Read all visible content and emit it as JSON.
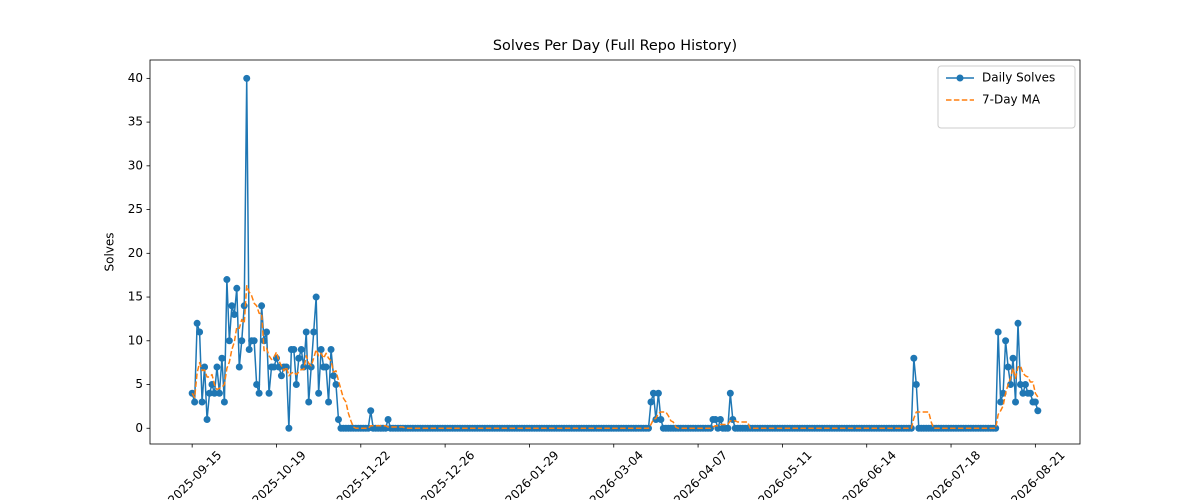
{
  "chart_data": {
    "type": "line",
    "title": "Solves Per Day (Full Repo History)",
    "y_label": "Solves",
    "legend": "upper right",
    "grid": false,
    "xlim": [
      "2025-08-29",
      "2026-09-08"
    ],
    "xticks": [
      "2025-09-15",
      "2025-10-19",
      "2025-11-22",
      "2025-12-26",
      "2026-01-29",
      "2026-03-04",
      "2026-04-07",
      "2026-05-11",
      "2026-06-14",
      "2026-07-18",
      "2026-08-21"
    ],
    "ylim": [
      -1.8,
      42.1
    ],
    "yticks": [
      0,
      5,
      10,
      15,
      20,
      25,
      30,
      35,
      40
    ],
    "x": [
      "2025-09-15",
      "2025-09-16",
      "2025-09-17",
      "2025-09-18",
      "2025-09-19",
      "2025-09-20",
      "2025-09-21",
      "2025-09-22",
      "2025-09-23",
      "2025-09-24",
      "2025-09-25",
      "2025-09-26",
      "2025-09-27",
      "2025-09-28",
      "2025-09-29",
      "2025-09-30",
      "2025-10-01",
      "2025-10-02",
      "2025-10-03",
      "2025-10-04",
      "2025-10-05",
      "2025-10-06",
      "2025-10-07",
      "2025-10-08",
      "2025-10-09",
      "2025-10-10",
      "2025-10-11",
      "2025-10-12",
      "2025-10-13",
      "2025-10-14",
      "2025-10-15",
      "2025-10-16",
      "2025-10-17",
      "2025-10-18",
      "2025-10-19",
      "2025-10-20",
      "2025-10-21",
      "2025-10-22",
      "2025-10-23",
      "2025-10-24",
      "2025-10-25",
      "2025-10-26",
      "2025-10-27",
      "2025-10-28",
      "2025-10-29",
      "2025-10-30",
      "2025-10-31",
      "2025-11-01",
      "2025-11-02",
      "2025-11-03",
      "2025-11-04",
      "2025-11-05",
      "2025-11-06",
      "2025-11-07",
      "2025-11-08",
      "2025-11-09",
      "2025-11-10",
      "2025-11-11",
      "2025-11-12",
      "2025-11-13",
      "2025-11-14",
      "2025-11-15",
      "2025-11-16",
      "2025-11-17",
      "2025-11-18",
      "2025-11-19",
      "2025-11-20",
      "2025-11-21",
      "2025-11-22",
      "2025-11-23",
      "2025-11-24",
      "2025-11-25",
      "2025-11-26",
      "2025-11-27",
      "2025-11-28",
      "2025-11-29",
      "2025-11-30",
      "2025-12-01",
      "2025-12-02",
      "2025-12-03",
      "2025-12-04",
      "2025-12-05",
      "2025-12-06",
      "2025-12-07",
      "2025-12-08",
      "2025-12-09",
      "2025-12-10",
      "2025-12-11",
      "2025-12-12",
      "2025-12-13",
      "2025-12-14",
      "2025-12-15",
      "2025-12-16",
      "2025-12-17",
      "2025-12-18",
      "2025-12-19",
      "2025-12-20",
      "2025-12-21",
      "2025-12-22",
      "2025-12-23",
      "2025-12-24",
      "2025-12-25",
      "2025-12-26",
      "2025-12-27",
      "2025-12-28",
      "2025-12-29",
      "2025-12-30",
      "2025-12-31",
      "2026-01-01",
      "2026-01-02",
      "2026-01-03",
      "2026-01-04",
      "2026-01-05",
      "2026-01-06",
      "2026-01-07",
      "2026-01-08",
      "2026-01-09",
      "2026-01-10",
      "2026-01-11",
      "2026-01-12",
      "2026-01-13",
      "2026-01-14",
      "2026-01-15",
      "2026-01-16",
      "2026-01-17",
      "2026-01-18",
      "2026-01-19",
      "2026-01-20",
      "2026-01-21",
      "2026-01-22",
      "2026-01-23",
      "2026-01-24",
      "2026-01-25",
      "2026-01-26",
      "2026-01-27",
      "2026-01-28",
      "2026-01-29",
      "2026-01-30",
      "2026-01-31",
      "2026-02-01",
      "2026-02-02",
      "2026-02-03",
      "2026-02-04",
      "2026-02-05",
      "2026-02-06",
      "2026-02-07",
      "2026-02-08",
      "2026-02-09",
      "2026-02-10",
      "2026-02-11",
      "2026-02-12",
      "2026-02-13",
      "2026-02-14",
      "2026-02-15",
      "2026-02-16",
      "2026-02-17",
      "2026-02-18",
      "2026-02-19",
      "2026-02-20",
      "2026-02-21",
      "2026-02-22",
      "2026-02-23",
      "2026-02-24",
      "2026-02-25",
      "2026-02-26",
      "2026-02-27",
      "2026-02-28",
      "2026-03-01",
      "2026-03-02",
      "2026-03-03",
      "2026-03-04",
      "2026-03-05",
      "2026-03-06",
      "2026-03-07",
      "2026-03-08",
      "2026-03-09",
      "2026-03-10",
      "2026-03-11",
      "2026-03-12",
      "2026-03-13",
      "2026-03-14",
      "2026-03-15",
      "2026-03-16",
      "2026-03-17",
      "2026-03-18",
      "2026-03-19",
      "2026-03-20",
      "2026-03-21",
      "2026-03-22",
      "2026-03-23",
      "2026-03-24",
      "2026-03-25",
      "2026-03-26",
      "2026-03-27",
      "2026-03-28",
      "2026-03-29",
      "2026-03-30",
      "2026-03-31",
      "2026-04-01",
      "2026-04-02",
      "2026-04-03",
      "2026-04-04",
      "2026-04-05",
      "2026-04-06",
      "2026-04-07",
      "2026-04-08",
      "2026-04-09",
      "2026-04-10",
      "2026-04-11",
      "2026-04-12",
      "2026-04-13",
      "2026-04-14",
      "2026-04-15",
      "2026-04-16",
      "2026-04-17",
      "2026-04-18",
      "2026-04-19",
      "2026-04-20",
      "2026-04-21",
      "2026-04-22",
      "2026-04-23",
      "2026-04-24",
      "2026-04-25",
      "2026-04-26",
      "2026-04-27",
      "2026-04-28",
      "2026-04-29",
      "2026-04-30",
      "2026-05-01",
      "2026-05-02",
      "2026-05-03",
      "2026-05-04",
      "2026-05-05",
      "2026-05-06",
      "2026-05-07",
      "2026-05-08",
      "2026-05-09",
      "2026-05-10",
      "2026-05-11",
      "2026-05-12",
      "2026-05-13",
      "2026-05-14",
      "2026-05-15",
      "2026-05-16",
      "2026-05-17",
      "2026-05-18",
      "2026-05-19",
      "2026-05-20",
      "2026-05-21",
      "2026-05-22",
      "2026-05-23",
      "2026-05-24",
      "2026-05-25",
      "2026-05-26",
      "2026-05-27",
      "2026-05-28",
      "2026-05-29",
      "2026-05-30",
      "2026-05-31",
      "2026-06-01",
      "2026-06-02",
      "2026-06-03",
      "2026-06-04",
      "2026-06-05",
      "2026-06-06",
      "2026-06-07",
      "2026-06-08",
      "2026-06-09",
      "2026-06-10",
      "2026-06-11",
      "2026-06-12",
      "2026-06-13",
      "2026-06-14",
      "2026-06-15",
      "2026-06-16",
      "2026-06-17",
      "2026-06-18",
      "2026-06-19",
      "2026-06-20",
      "2026-06-21",
      "2026-06-22",
      "2026-06-23",
      "2026-06-24",
      "2026-06-25",
      "2026-06-26",
      "2026-06-27",
      "2026-06-28",
      "2026-06-29",
      "2026-06-30",
      "2026-07-01",
      "2026-07-02",
      "2026-07-03",
      "2026-07-04",
      "2026-07-05",
      "2026-07-06",
      "2026-07-07",
      "2026-07-08",
      "2026-07-09",
      "2026-07-10",
      "2026-07-11",
      "2026-07-12",
      "2026-07-13",
      "2026-07-14",
      "2026-07-15",
      "2026-07-16",
      "2026-07-17",
      "2026-07-18",
      "2026-07-19",
      "2026-07-20",
      "2026-07-21",
      "2026-07-22",
      "2026-07-23",
      "2026-07-24",
      "2026-07-25",
      "2026-07-26",
      "2026-07-27",
      "2026-07-28",
      "2026-07-29",
      "2026-07-30",
      "2026-07-31",
      "2026-08-01",
      "2026-08-02",
      "2026-08-03",
      "2026-08-04",
      "2026-08-05",
      "2026-08-06",
      "2026-08-07",
      "2026-08-08",
      "2026-08-09",
      "2026-08-10",
      "2026-08-11",
      "2026-08-12",
      "2026-08-13",
      "2026-08-14",
      "2026-08-15",
      "2026-08-16",
      "2026-08-17",
      "2026-08-18",
      "2026-08-19",
      "2026-08-20",
      "2026-08-21",
      "2026-08-22"
    ],
    "series": [
      {
        "name": "Daily Solves",
        "color": "#1f77b4",
        "style": "solid",
        "marker": true,
        "values": [
          4,
          3,
          12,
          11,
          3,
          7,
          1,
          4,
          5,
          4,
          7,
          4,
          8,
          3,
          17,
          10,
          14,
          13,
          16,
          7,
          10,
          14,
          40,
          9,
          10,
          10,
          5,
          4,
          14,
          10,
          11,
          4,
          7,
          7,
          8,
          7,
          6,
          7,
          7,
          0,
          9,
          9,
          5,
          8,
          9,
          7,
          11,
          3,
          7,
          11,
          15,
          4,
          9,
          7,
          7,
          3,
          9,
          6,
          5,
          1,
          0,
          0,
          0,
          0,
          0,
          0,
          0,
          0,
          0,
          0,
          0,
          0,
          2,
          0,
          0,
          0,
          0,
          0,
          0,
          1,
          0,
          0,
          0,
          0,
          0,
          0,
          0,
          0,
          0,
          0,
          0,
          0,
          0,
          0,
          0,
          0,
          0,
          0,
          0,
          0,
          0,
          0,
          0,
          0,
          0,
          0,
          0,
          0,
          0,
          0,
          0,
          0,
          0,
          0,
          0,
          0,
          0,
          0,
          0,
          0,
          0,
          0,
          0,
          0,
          0,
          0,
          0,
          0,
          0,
          0,
          0,
          0,
          0,
          0,
          0,
          0,
          0,
          0,
          0,
          0,
          0,
          0,
          0,
          0,
          0,
          0,
          0,
          0,
          0,
          0,
          0,
          0,
          0,
          0,
          0,
          0,
          0,
          0,
          0,
          0,
          0,
          0,
          0,
          0,
          0,
          0,
          0,
          0,
          0,
          0,
          0,
          0,
          0,
          0,
          0,
          0,
          0,
          0,
          0,
          0,
          0,
          0,
          0,
          0,
          0,
          3,
          4,
          1,
          4,
          1,
          0,
          0,
          0,
          0,
          0,
          0,
          0,
          0,
          0,
          0,
          0,
          0,
          0,
          0,
          0,
          0,
          0,
          0,
          0,
          0,
          1,
          1,
          0,
          1,
          0,
          0,
          0,
          4,
          1,
          0,
          0,
          0,
          0,
          0,
          0,
          0,
          0,
          0,
          0,
          0,
          0,
          0,
          0,
          0,
          0,
          0,
          0,
          0,
          0,
          0,
          0,
          0,
          0,
          0,
          0,
          0,
          0,
          0,
          0,
          0,
          0,
          0,
          0,
          0,
          0,
          0,
          0,
          0,
          0,
          0,
          0,
          0,
          0,
          0,
          0,
          0,
          0,
          0,
          0,
          0,
          0,
          0,
          0,
          0,
          0,
          0,
          0,
          0,
          0,
          0,
          0,
          0,
          0,
          0,
          0,
          0,
          0,
          0,
          0,
          0,
          0,
          8,
          5,
          0,
          0,
          0,
          0,
          0,
          0,
          0,
          0,
          0,
          0,
          0,
          0,
          0,
          0,
          0,
          0,
          0,
          0,
          0,
          0,
          0,
          0,
          0,
          0,
          0,
          0,
          0,
          0,
          0,
          0,
          0,
          0,
          11,
          3,
          4,
          10,
          7,
          5,
          8,
          3,
          12,
          5,
          4,
          5,
          4,
          4,
          3,
          3,
          2
        ]
      },
      {
        "name": "7-Day MA",
        "color": "#ff7f0e",
        "style": "dashed",
        "marker": false,
        "values": [
          4,
          3.5,
          6.33,
          7.5,
          6.6,
          6.67,
          5.86,
          5.86,
          6.14,
          5,
          4.43,
          4.57,
          4.71,
          5,
          6.86,
          7.57,
          9,
          9.86,
          11.57,
          11.43,
          12.43,
          12,
          16.29,
          15.57,
          15.14,
          14.29,
          14,
          13.14,
          13.14,
          8.86,
          9.14,
          8.29,
          7.86,
          8.14,
          8.71,
          7.71,
          7.14,
          6.57,
          7,
          6,
          6.29,
          6.43,
          6.14,
          6.43,
          6.71,
          6.71,
          8.29,
          7.43,
          7.14,
          8,
          9,
          8.29,
          8.57,
          8,
          8.57,
          8,
          7.71,
          6.43,
          6.57,
          5.43,
          4.43,
          3.43,
          3,
          1.71,
          0.86,
          0.14,
          0,
          0,
          0,
          0,
          0,
          0,
          0.29,
          0.29,
          0.29,
          0.29,
          0.29,
          0.29,
          0.29,
          0.14,
          0.14,
          0.14,
          0.14,
          0.14,
          0.14,
          0.14,
          0,
          0,
          0,
          0,
          0,
          0,
          0,
          0,
          0,
          0,
          0,
          0,
          0,
          0,
          0,
          0,
          0,
          0,
          0,
          0,
          0,
          0,
          0,
          0,
          0,
          0,
          0,
          0,
          0,
          0,
          0,
          0,
          0,
          0,
          0,
          0,
          0,
          0,
          0,
          0,
          0,
          0,
          0,
          0,
          0,
          0,
          0,
          0,
          0,
          0,
          0,
          0,
          0,
          0,
          0,
          0,
          0,
          0,
          0,
          0,
          0,
          0,
          0,
          0,
          0,
          0,
          0,
          0,
          0,
          0,
          0,
          0,
          0,
          0,
          0,
          0,
          0,
          0,
          0,
          0,
          0,
          0,
          0,
          0,
          0,
          0,
          0,
          0,
          0,
          0,
          0,
          0,
          0,
          0,
          0,
          0,
          0,
          0,
          0,
          0.43,
          1,
          1.14,
          1.71,
          1.86,
          1.86,
          1.86,
          1.43,
          0.86,
          0.71,
          0.14,
          0,
          0,
          0,
          0,
          0,
          0,
          0,
          0,
          0,
          0,
          0,
          0,
          0,
          0,
          0.14,
          0.29,
          0.29,
          0.43,
          0.43,
          0.43,
          0.43,
          0.86,
          0.86,
          0.86,
          0.71,
          0.71,
          0.71,
          0.71,
          0.71,
          0,
          0,
          0,
          0,
          0,
          0,
          0,
          0,
          0,
          0,
          0,
          0,
          0,
          0,
          0,
          0,
          0,
          0,
          0,
          0,
          0,
          0,
          0,
          0,
          0,
          0,
          0,
          0,
          0,
          0,
          0,
          0,
          0,
          0,
          0,
          0,
          0,
          0,
          0,
          0,
          0,
          0,
          0,
          0,
          0,
          0,
          0,
          0,
          0,
          0,
          0,
          0,
          0,
          0,
          0,
          0,
          0,
          0,
          0,
          0,
          0,
          0,
          0,
          0,
          0,
          0,
          1.14,
          1.86,
          1.86,
          1.86,
          1.86,
          1.86,
          1.86,
          0.71,
          0,
          0,
          0,
          0,
          0,
          0,
          0,
          0,
          0,
          0,
          0,
          0,
          0,
          0,
          0,
          0,
          0,
          0,
          0,
          0,
          0,
          0,
          0,
          0,
          0,
          0,
          1.57,
          2,
          2.57,
          4,
          5,
          5.71,
          6.86,
          5.71,
          7,
          7.14,
          6.29,
          6,
          5.86,
          5.29,
          5.29,
          4,
          3.57
        ]
      }
    ]
  }
}
